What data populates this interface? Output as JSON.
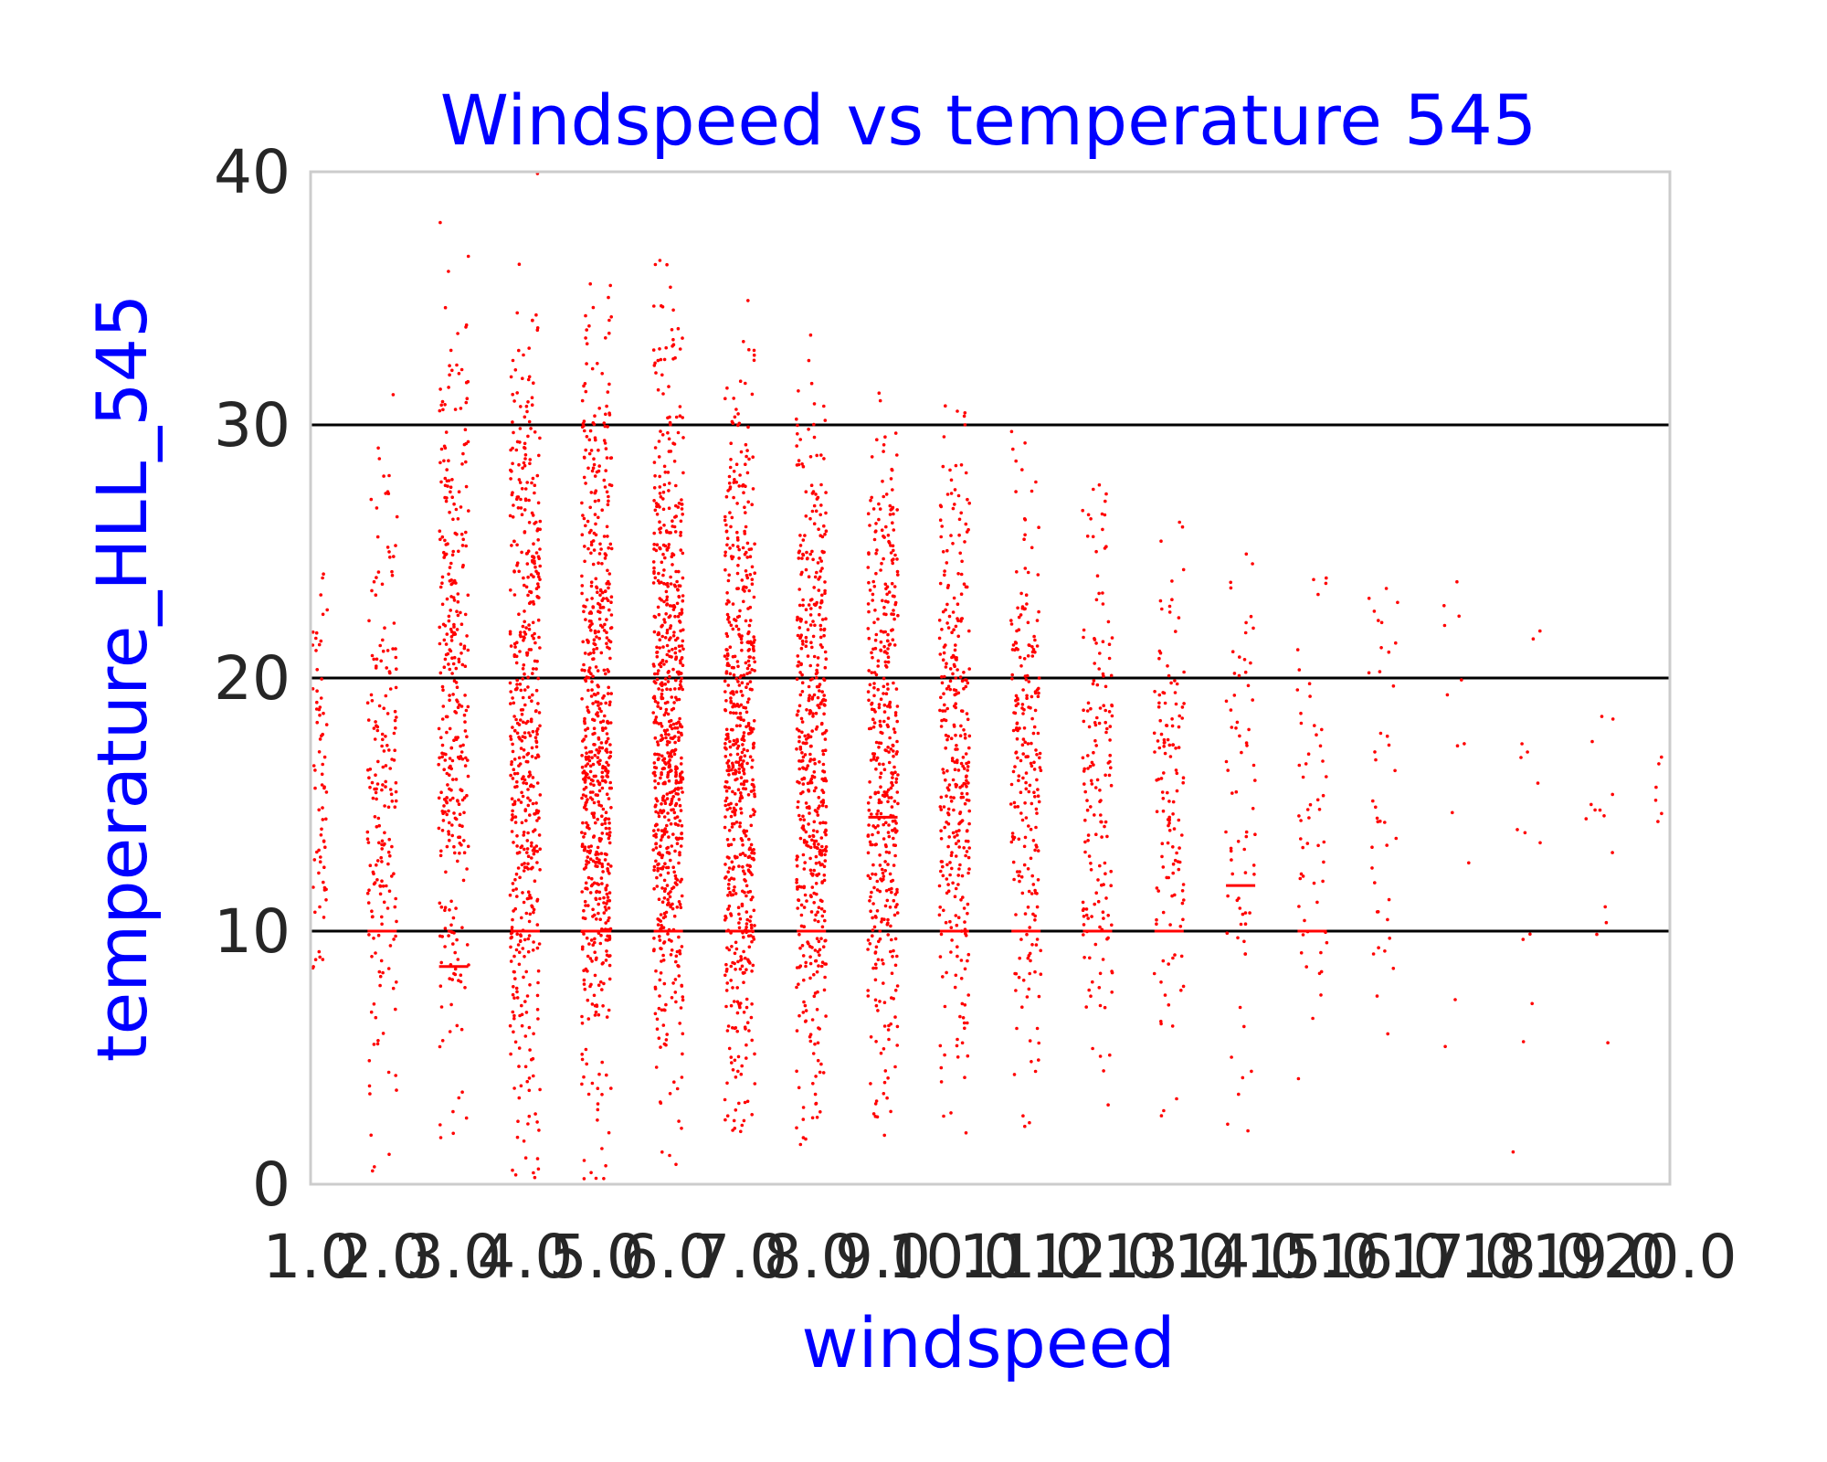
{
  "chart_data": {
    "type": "scatter",
    "title": "Windspeed vs temperature 545",
    "xlabel": "windspeed",
    "ylabel": "temperature_HLL_545",
    "xlim": [
      1.0,
      20.0
    ],
    "ylim": [
      0,
      40
    ],
    "x_ticks": [
      "1.0",
      "2.0",
      "3.0",
      "4.0",
      "5.0",
      "6.0",
      "7.0",
      "8.0",
      "9.0",
      "10.0",
      "11.0",
      "12.0",
      "13.0",
      "14.0",
      "15.0",
      "16.0",
      "17.0",
      "18.0",
      "19.0",
      "20.0"
    ],
    "y_ticks": [
      "0",
      "10",
      "20",
      "30",
      "40"
    ],
    "reference_lines_y": [
      10,
      20,
      30
    ],
    "grid": false,
    "point_color": "#ff0000",
    "reference_line_color": "#000000",
    "title_color": "#0000ff",
    "label_color": "#0000ff",
    "spine_color": "#cccccc",
    "series": [
      {
        "x_center": 1.0,
        "count": 70,
        "range": [
          1,
          34
        ],
        "clusters": [
          {
            "y": 20,
            "sd": 4,
            "w": 0.5
          },
          {
            "y": 14,
            "sd": 4,
            "w": 0.5
          }
        ]
      },
      {
        "x_center": 2.0,
        "count": 190,
        "range": [
          0.5,
          34
        ],
        "clusters": [
          {
            "y": 14,
            "sd": 6,
            "w": 0.7
          },
          {
            "y": 22,
            "sd": 5,
            "w": 0.3
          }
        ],
        "marker_y": 10
      },
      {
        "x_center": 3.0,
        "count": 330,
        "range": [
          0,
          40
        ],
        "clusters": [
          {
            "y": 17,
            "sd": 7,
            "w": 0.75
          },
          {
            "y": 27,
            "sd": 5,
            "w": 0.25
          }
        ],
        "marker_y": 8.6
      },
      {
        "x_center": 4.0,
        "count": 500,
        "range": [
          0,
          40
        ],
        "clusters": [
          {
            "y": 16,
            "sd": 7,
            "w": 0.8
          },
          {
            "y": 28,
            "sd": 4,
            "w": 0.2
          }
        ],
        "marker_y": 10
      },
      {
        "x_center": 5.0,
        "count": 620,
        "range": [
          0,
          36
        ],
        "clusters": [
          {
            "y": 16,
            "sd": 6.5,
            "w": 0.85
          },
          {
            "y": 28,
            "sd": 4,
            "w": 0.15
          }
        ],
        "marker_y": 10
      },
      {
        "x_center": 6.0,
        "count": 680,
        "range": [
          0,
          39
        ],
        "clusters": [
          {
            "y": 16,
            "sd": 6,
            "w": 0.85
          },
          {
            "y": 28,
            "sd": 4,
            "w": 0.15
          }
        ],
        "marker_y": 10
      },
      {
        "x_center": 7.0,
        "count": 600,
        "range": [
          2,
          35
        ],
        "clusters": [
          {
            "y": 16,
            "sd": 6,
            "w": 0.9
          },
          {
            "y": 27,
            "sd": 3,
            "w": 0.1
          }
        ],
        "marker_y": 10
      },
      {
        "x_center": 8.0,
        "count": 500,
        "range": [
          1.5,
          35
        ],
        "clusters": [
          {
            "y": 16,
            "sd": 6,
            "w": 0.9
          },
          {
            "y": 27,
            "sd": 3,
            "w": 0.1
          }
        ],
        "marker_y": 10
      },
      {
        "x_center": 9.0,
        "count": 420,
        "range": [
          1.5,
          33
        ],
        "clusters": [
          {
            "y": 16,
            "sd": 6,
            "w": 0.9
          },
          {
            "y": 26,
            "sd": 3,
            "w": 0.1
          }
        ],
        "marker_y": 14.5
      },
      {
        "x_center": 10.0,
        "count": 320,
        "range": [
          2,
          31
        ],
        "clusters": [
          {
            "y": 17,
            "sd": 6,
            "w": 0.9
          },
          {
            "y": 26,
            "sd": 2.5,
            "w": 0.1
          }
        ],
        "marker_y": 10
      },
      {
        "x_center": 11.0,
        "count": 230,
        "range": [
          1.5,
          31
        ],
        "clusters": [
          {
            "y": 16,
            "sd": 5.5,
            "w": 1.0
          }
        ],
        "marker_y": 10
      },
      {
        "x_center": 12.0,
        "count": 160,
        "range": [
          1.5,
          28
        ],
        "clusters": [
          {
            "y": 15,
            "sd": 6,
            "w": 1.0
          }
        ],
        "marker_y": 10
      },
      {
        "x_center": 13.0,
        "count": 130,
        "range": [
          2,
          27
        ],
        "clusters": [
          {
            "y": 16,
            "sd": 5,
            "w": 1.0
          }
        ],
        "marker_y": 10
      },
      {
        "x_center": 14.0,
        "count": 70,
        "range": [
          2,
          25
        ],
        "clusters": [
          {
            "y": 15,
            "sd": 6,
            "w": 1.0
          }
        ],
        "marker_y": 11.8
      },
      {
        "x_center": 15.0,
        "count": 55,
        "range": [
          2,
          24
        ],
        "clusters": [
          {
            "y": 15,
            "sd": 5,
            "w": 1.0
          }
        ],
        "marker_y": 10
      },
      {
        "x_center": 16.0,
        "count": 40,
        "range": [
          1,
          24
        ],
        "clusters": [
          {
            "y": 16,
            "sd": 5,
            "w": 1.0
          }
        ]
      },
      {
        "x_center": 17.0,
        "count": 12,
        "range": [
          1,
          24
        ],
        "clusters": [
          {
            "y": 18,
            "sd": 6,
            "w": 1.0
          }
        ]
      },
      {
        "x_center": 18.0,
        "count": 14,
        "range": [
          1,
          23
        ],
        "clusters": [
          {
            "y": 16,
            "sd": 5,
            "w": 1.0
          }
        ]
      },
      {
        "x_center": 19.0,
        "count": 14,
        "range": [
          1,
          19
        ],
        "clusters": [
          {
            "y": 15,
            "sd": 4,
            "w": 1.0
          }
        ]
      },
      {
        "x_center": 20.0,
        "count": 6,
        "range": [
          13,
          18
        ],
        "clusters": [
          {
            "y": 15,
            "sd": 2,
            "w": 1.0
          }
        ]
      }
    ]
  }
}
